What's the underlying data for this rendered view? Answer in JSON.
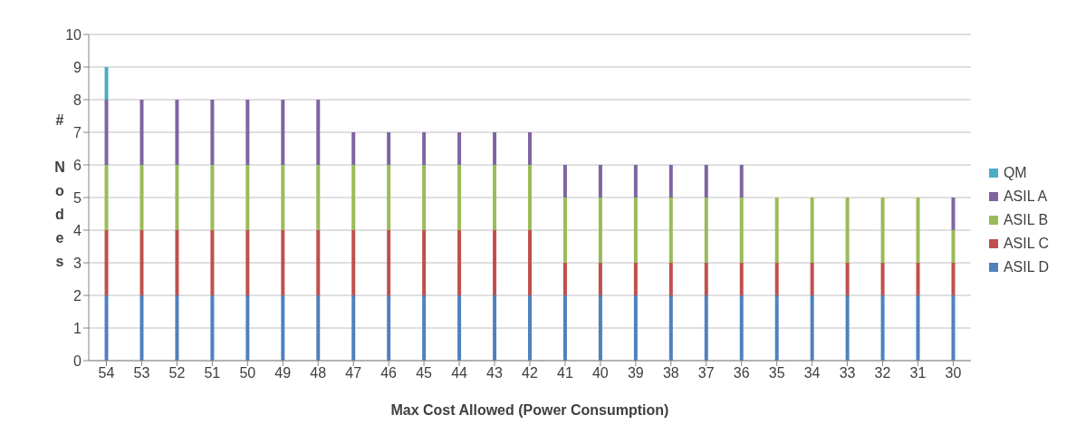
{
  "chart_data": {
    "type": "bar",
    "stacked": true,
    "xlabel": "Max Cost Allowed (Power Consumption)",
    "ylabel": "# Nodes",
    "categories": [
      "54",
      "53",
      "52",
      "51",
      "50",
      "49",
      "48",
      "47",
      "46",
      "45",
      "44",
      "43",
      "42",
      "41",
      "40",
      "39",
      "38",
      "37",
      "36",
      "35",
      "34",
      "33",
      "32",
      "31",
      "30"
    ],
    "series": [
      {
        "name": "ASIL D",
        "color": "#4f81bd",
        "values": [
          2,
          2,
          2,
          2,
          2,
          2,
          2,
          2,
          2,
          2,
          2,
          2,
          2,
          2,
          2,
          2,
          2,
          2,
          2,
          2,
          2,
          2,
          2,
          2,
          2
        ]
      },
      {
        "name": "ASIL C",
        "color": "#c0504d",
        "values": [
          2,
          2,
          2,
          2,
          2,
          2,
          2,
          2,
          2,
          2,
          2,
          2,
          2,
          1,
          1,
          1,
          1,
          1,
          1,
          1,
          1,
          1,
          1,
          1,
          1
        ]
      },
      {
        "name": "ASIL B",
        "color": "#9bbb59",
        "values": [
          2,
          2,
          2,
          2,
          2,
          2,
          2,
          2,
          2,
          2,
          2,
          2,
          2,
          2,
          2,
          2,
          2,
          2,
          2,
          2,
          2,
          2,
          2,
          2,
          1
        ]
      },
      {
        "name": "ASIL A",
        "color": "#8064a2",
        "values": [
          2,
          2,
          2,
          2,
          2,
          2,
          2,
          1,
          1,
          1,
          1,
          1,
          1,
          1,
          1,
          1,
          1,
          1,
          1,
          0,
          0,
          0,
          0,
          0,
          1
        ]
      },
      {
        "name": "QM",
        "color": "#4bacc6",
        "values": [
          1,
          0,
          0,
          0,
          0,
          0,
          0,
          0,
          0,
          0,
          0,
          0,
          0,
          0,
          0,
          0,
          0,
          0,
          0,
          0,
          0,
          0,
          0,
          0,
          0
        ]
      }
    ],
    "ylim": [
      0,
      10
    ],
    "yticks": [
      0,
      1,
      2,
      3,
      4,
      5,
      6,
      7,
      8,
      9,
      10
    ],
    "grid": "y",
    "legend": "right"
  }
}
